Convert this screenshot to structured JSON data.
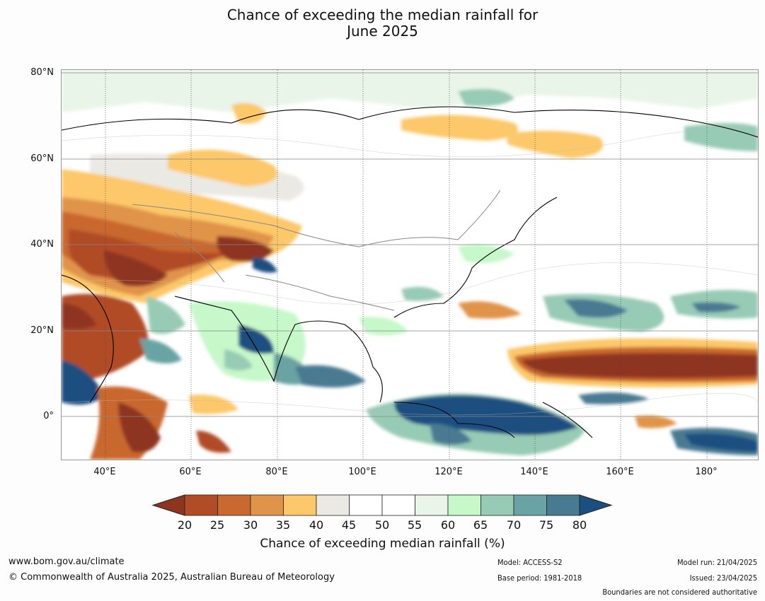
{
  "title": {
    "line1": "Chance of exceeding the median rainfall for",
    "line2": "June 2025"
  },
  "map": {
    "lat_labels": [
      "80°N",
      "60°N",
      "40°N",
      "20°N",
      "0°"
    ],
    "lon_labels": [
      "40°E",
      "60°E",
      "80°E",
      "100°E",
      "120°E",
      "140°E",
      "160°E",
      "180°"
    ]
  },
  "colorbar": {
    "ticks": [
      "20",
      "25",
      "30",
      "35",
      "40",
      "45",
      "50",
      "55",
      "60",
      "65",
      "70",
      "75",
      "80"
    ],
    "colors": [
      "#8e3520",
      "#b04c26",
      "#c9682f",
      "#e0944a",
      "#fcc869",
      "#ebe9e4",
      "#ffffff",
      "#ffffff",
      "#e8f5e8",
      "#c6f8c9",
      "#98cbb6",
      "#6aa3a3",
      "#487a92",
      "#1a4f80"
    ],
    "label": "Chance of exceeding median rainfall (%)"
  },
  "footer": {
    "website": "www.bom.gov.au/climate",
    "copyright": "© Commonwealth of Australia 2025, Australian Bureau of Meteorology",
    "model": "Model: ACCESS-S2",
    "base_period": "Base period: 1981-2018",
    "model_run": "Model run: 21/04/2025",
    "issued": "Issued: 23/04/2025",
    "disclaimer": "Boundaries are not considered authoritative"
  }
}
